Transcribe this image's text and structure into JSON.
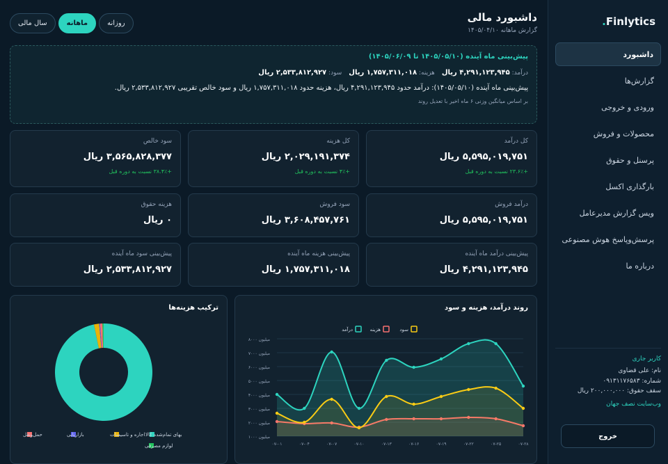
{
  "app": {
    "logo": "Finlytics",
    "logo_dot": "."
  },
  "sidebar": {
    "items": [
      {
        "label": "داشبورد",
        "active": true
      },
      {
        "label": "گزارش‌ها"
      },
      {
        "label": "ورودی و خروجی"
      },
      {
        "label": "محصولات و فروش"
      },
      {
        "label": "پرسنل و حقوق"
      },
      {
        "label": "بارگذاری اکسل"
      },
      {
        "label": "ویس گزارش مدیرعامل"
      },
      {
        "label": "پرسش‌وپاسخ هوش مصنوعی"
      },
      {
        "label": "درباره ما"
      }
    ],
    "user": {
      "title": "کاربر جاری",
      "name": "نام: علی قضاوی",
      "phone": "شماره: ۰۹۱۳۱۱۷۶۵۸۳",
      "salary_cap": "سقف حقوق: ۲۰۰,۰۰۰,۰۰۰ ریال",
      "site": "وب‌سایت نصف جهان"
    },
    "logout": "خروج"
  },
  "header": {
    "title": "داشبورد مالی",
    "subtitle": "گزارش ماهانه ۱۴۰۵/۰۴/۱۰",
    "periods": [
      "روزانه",
      "ماهانه",
      "سال مالی"
    ],
    "active_period": "ماهانه"
  },
  "forecast": {
    "heading": "پیش‌بینی ماه آینده (۱۴۰۵/۰۵/۱۰ تا ۱۴۰۵/۰۶/۰۹)",
    "income_label": "درآمد:",
    "income": "۴,۲۹۱,۱۲۳,۹۴۵ ریال",
    "cost_label": "هزینه:",
    "cost": "۱,۷۵۷,۳۱۱,۰۱۸ ریال",
    "profit_label": "سود:",
    "profit": "۲,۵۳۳,۸۱۲,۹۲۷ ریال",
    "summary": "پیش‌بینی ماه آینده (۱۴۰۵/۰۵/۱۰): درآمد حدود ۴,۲۹۱,۱۲۳,۹۴۵ ریال، هزینه حدود ۱,۷۵۷,۳۱۱,۰۱۸ ریال و سود خالص تقریبی ۲,۵۳۳,۸۱۲,۹۲۷ ریال.",
    "note": "بر اساس میانگین وزنی ۶ ماه اخیر با تعدیل روند"
  },
  "kpis": {
    "total_income": {
      "label": "کل درآمد",
      "value": "۵,۵۹۵,۰۱۹,۷۵۱ ریال",
      "change": "+۲۳.۶٪ نسبت به دوره قبل"
    },
    "total_cost": {
      "label": "کل هزینه",
      "value": "۲,۰۲۹,۱۹۱,۳۷۴ ریال",
      "change": "+۴٪ نسبت به دوره قبل"
    },
    "net_profit": {
      "label": "سود خالص",
      "value": "۳,۵۶۵,۸۲۸,۳۷۷ ریال",
      "change": "+۳۸.۴٪ نسبت به دوره قبل"
    },
    "sales_income": {
      "label": "درآمد فروش",
      "value": "۵,۵۹۵,۰۱۹,۷۵۱ ریال"
    },
    "sales_profit": {
      "label": "سود فروش",
      "value": "۳,۶۰۸,۴۵۷,۷۶۱ ریال"
    },
    "salary_cost": {
      "label": "هزینه حقوق",
      "value": "۰ ریال"
    },
    "fc_income": {
      "label": "پیش‌بینی درآمد ماه آینده",
      "value": "۴,۲۹۱,۱۲۳,۹۴۵ ریال"
    },
    "fc_cost": {
      "label": "پیش‌بینی هزینه ماه آینده",
      "value": "۱,۷۵۷,۳۱۱,۰۱۸ ریال"
    },
    "fc_profit": {
      "label": "پیش‌بینی سود ماه آینده",
      "value": "۲,۵۳۳,۸۱۲,۹۲۷ ریال"
    }
  },
  "trend_panel_title": "روند درآمد، هزینه و سود",
  "mix_panel_title": "ترکیب هزینه‌ها",
  "chart_data": [
    {
      "type": "line",
      "title": "روند درآمد، هزینه و سود",
      "x": [
        "۰۷-۰۱",
        "۰۷-۰۴",
        "۰۷-۰۷",
        "۰۷-۱۰",
        "۰۷-۱۳",
        "۰۷-۱۶",
        "۰۷-۱۹",
        "۰۷-۲۲",
        "۰۷-۲۵",
        "۰۷-۲۸"
      ],
      "y_ticks": [
        "۱۰۰۰ میلیون",
        "۲۰۰۰ میلیون",
        "۳۰۰۰ میلیون",
        "۴۰۰۰ میلیون",
        "۵۰۰۰ میلیون",
        "۶۰۰۰ میلیون",
        "۷۰۰۰ میلیون",
        "۸۰۰۰ میلیون"
      ],
      "ylim": [
        1000,
        8000
      ],
      "legend": "top-center",
      "series": [
        {
          "name": "درآمد",
          "color": "#2dd4bf",
          "values": [
            4000,
            3000,
            7050,
            3000,
            6450,
            5950,
            6550,
            7650,
            7650,
            4600
          ]
        },
        {
          "name": "هزینه",
          "color": "#f87171",
          "values": [
            2050,
            1900,
            1950,
            1650,
            2200,
            2250,
            2250,
            2350,
            2250,
            1750
          ]
        },
        {
          "name": "سود",
          "color": "#facc15",
          "values": [
            2650,
            2000,
            3650,
            1600,
            3850,
            3300,
            3850,
            4350,
            4450,
            3000
          ]
        }
      ]
    },
    {
      "type": "pie",
      "title": "ترکیب هزینه‌ها",
      "categories": [
        "بهای تمام‌شده کالا",
        "اجاره و تاسیسات",
        "بازاریابی",
        "حمل‌ونقل",
        "لوازم مصرفی"
      ],
      "colors": [
        "#2dd4bf",
        "#eab308",
        "#6366f1",
        "#f87171",
        "#22c55e"
      ],
      "values": [
        96.8,
        1.7,
        0.3,
        0.8,
        0.4
      ]
    }
  ]
}
